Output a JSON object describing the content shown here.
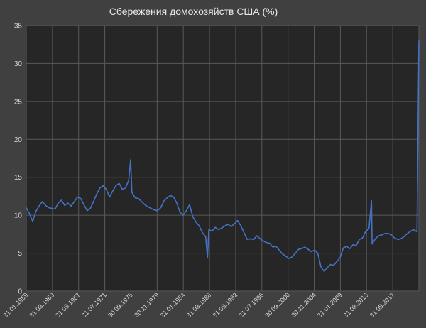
{
  "chart_data": {
    "type": "line",
    "title": "Сбережения домохозяйств США  (%)",
    "xlabel": "",
    "ylabel": "",
    "ylim": [
      0,
      35
    ],
    "grid": true,
    "legend": "none",
    "y_ticks": [
      "0",
      "5",
      "10",
      "15",
      "20",
      "25",
      "30",
      "35"
    ],
    "x_tick_labels": [
      "31.01.1959",
      "31.03.1963",
      "31.05.1967",
      "31.07.1971",
      "30.09.1975",
      "30.11.1979",
      "31.01.1984",
      "31.03.1988",
      "31.05.1992",
      "31.07.1996",
      "30.09.2000",
      "30.11.2004",
      "31.01.2009",
      "31.03.2013",
      "31.05.2017"
    ],
    "series": [
      {
        "color": "#4472c4",
        "x": [
          1959.0,
          1959.5,
          1960.0,
          1960.5,
          1961.0,
          1961.5,
          1962.0,
          1962.5,
          1963.0,
          1963.5,
          1964.0,
          1964.5,
          1965.0,
          1965.5,
          1966.0,
          1966.5,
          1967.0,
          1967.5,
          1968.0,
          1968.5,
          1969.0,
          1969.5,
          1970.0,
          1970.5,
          1971.0,
          1971.5,
          1972.0,
          1972.5,
          1973.0,
          1973.5,
          1974.0,
          1974.5,
          1975.0,
          1975.3,
          1975.5,
          1976.0,
          1976.5,
          1977.0,
          1977.5,
          1978.0,
          1978.5,
          1979.0,
          1979.5,
          1980.0,
          1980.5,
          1981.0,
          1981.5,
          1982.0,
          1982.5,
          1983.0,
          1983.5,
          1984.0,
          1984.5,
          1985.0,
          1985.5,
          1986.0,
          1986.5,
          1987.0,
          1987.3,
          1987.5,
          1988.0,
          1988.5,
          1989.0,
          1989.5,
          1990.0,
          1990.5,
          1991.0,
          1991.5,
          1992.0,
          1992.5,
          1993.0,
          1993.5,
          1994.0,
          1994.5,
          1995.0,
          1995.5,
          1996.0,
          1996.5,
          1997.0,
          1997.5,
          1998.0,
          1998.5,
          1999.0,
          1999.5,
          2000.0,
          2000.5,
          2001.0,
          2001.5,
          2002.0,
          2002.5,
          2003.0,
          2003.5,
          2004.0,
          2004.5,
          2005.0,
          2005.5,
          2006.0,
          2006.5,
          2007.0,
          2007.5,
          2008.0,
          2008.5,
          2009.0,
          2009.5,
          2010.0,
          2010.5,
          2011.0,
          2011.5,
          2012.0,
          2012.5,
          2012.9,
          2013.0,
          2013.5,
          2014.0,
          2014.5,
          2015.0,
          2015.5,
          2016.0,
          2016.5,
          2017.0,
          2017.5,
          2018.0,
          2018.5,
          2019.0,
          2019.5,
          2020.0,
          2020.3
        ],
        "values": [
          11.0,
          10.2,
          9.2,
          10.5,
          11.2,
          11.8,
          11.3,
          11.0,
          10.9,
          10.8,
          11.6,
          12.0,
          11.3,
          11.6,
          11.2,
          11.8,
          12.4,
          12.2,
          11.4,
          10.6,
          10.9,
          11.8,
          12.8,
          13.6,
          13.9,
          13.4,
          12.4,
          13.2,
          13.9,
          14.2,
          13.4,
          13.6,
          14.6,
          17.3,
          13.0,
          12.3,
          12.2,
          11.8,
          11.4,
          11.1,
          10.9,
          10.7,
          10.6,
          11.0,
          11.9,
          12.3,
          12.6,
          12.4,
          11.6,
          10.4,
          10.0,
          10.6,
          11.4,
          9.8,
          9.1,
          8.6,
          7.7,
          7.2,
          4.4,
          8.1,
          7.9,
          8.4,
          8.1,
          8.3,
          8.6,
          8.8,
          8.5,
          8.9,
          9.3,
          8.6,
          7.7,
          6.8,
          6.9,
          6.8,
          7.3,
          6.9,
          6.6,
          6.4,
          6.3,
          5.8,
          5.9,
          5.4,
          4.9,
          4.6,
          4.3,
          4.5,
          5.0,
          5.5,
          5.6,
          5.8,
          5.5,
          5.2,
          5.4,
          5.0,
          3.2,
          2.6,
          3.1,
          3.5,
          3.4,
          3.9,
          4.4,
          5.7,
          5.9,
          5.6,
          6.1,
          6.0,
          6.8,
          7.0,
          7.9,
          8.2,
          11.9,
          6.2,
          6.9,
          7.3,
          7.4,
          7.6,
          7.6,
          7.4,
          7.0,
          6.8,
          6.9,
          7.2,
          7.6,
          7.9,
          8.1,
          7.8,
          33.0
        ]
      }
    ]
  }
}
